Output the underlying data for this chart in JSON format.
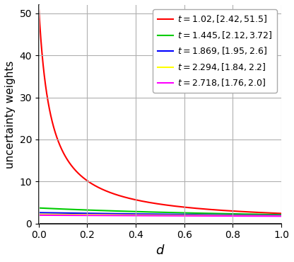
{
  "title": "",
  "xlabel": "$d$",
  "ylabel": "uncertainty weights",
  "xlim": [
    0,
    1.0
  ],
  "ylim": [
    0,
    52
  ],
  "series": [
    {
      "t": 1.02,
      "vmin": 2.42,
      "vmax": 51.5,
      "color": "red",
      "label": "$t=1.02,[2.42,51.5]$"
    },
    {
      "t": 1.445,
      "vmin": 2.12,
      "vmax": 3.72,
      "color": "#00cc00",
      "label": "$t=1.445,[2.12,3.72]$"
    },
    {
      "t": 1.869,
      "vmin": 1.95,
      "vmax": 2.6,
      "color": "blue",
      "label": "$t=1.869,[1.95,2.6]$"
    },
    {
      "t": 2.294,
      "vmin": 1.84,
      "vmax": 2.2,
      "color": "yellow",
      "label": "$t=2.294,[1.84,2.2]$"
    },
    {
      "t": 2.718,
      "vmin": 1.76,
      "vmax": 2.0,
      "color": "magenta",
      "label": "$t=2.718,[1.76,2.0]$"
    }
  ],
  "xticks": [
    0.0,
    0.2,
    0.4,
    0.6,
    0.8,
    1.0
  ],
  "yticks": [
    0,
    10,
    20,
    30,
    40,
    50
  ],
  "grid_color": "#b0b0b0",
  "figsize": [
    4.16,
    3.7
  ],
  "dpi": 100,
  "legend_fontsize": 9,
  "xlabel_fontsize": 13,
  "ylabel_fontsize": 11
}
